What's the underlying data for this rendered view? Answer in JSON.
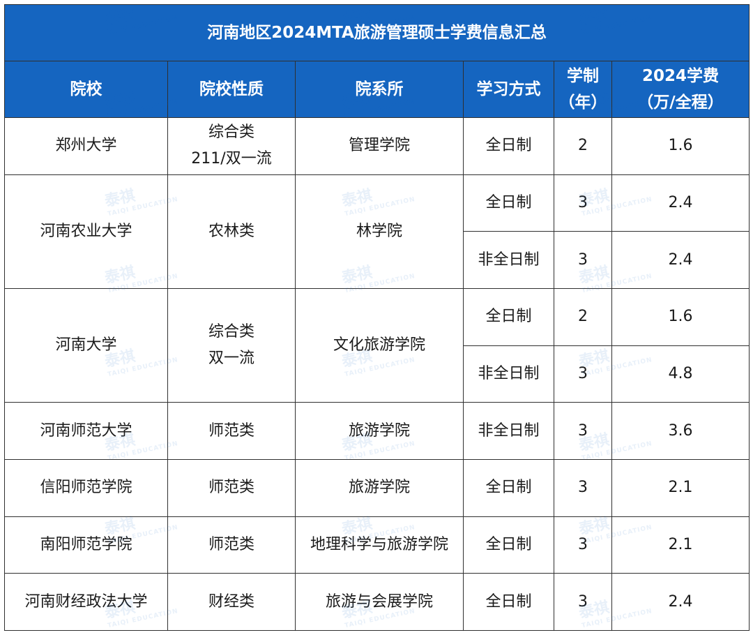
{
  "title": "河南地区2024MTA旅游管理硕士学费信息汇总",
  "headers": {
    "school": "院校",
    "nature": "院校性质",
    "dept": "院系所",
    "mode": "学习方式",
    "years_l1": "学制",
    "years_l2": "（年）",
    "fee_l1": "2024学费",
    "fee_l2": "（万/全程）"
  },
  "rows": [
    {
      "school": "郑州大学",
      "nature_l1": "综合类",
      "nature_l2": "211/双一流",
      "dept": "管理学院",
      "programs": [
        {
          "mode": "全日制",
          "years": "2",
          "fee": "1.6"
        }
      ]
    },
    {
      "school": "河南农业大学",
      "nature_l1": "农林类",
      "nature_l2": "",
      "dept": "林学院",
      "programs": [
        {
          "mode": "全日制",
          "years": "3",
          "fee": "2.4"
        },
        {
          "mode": "非全日制",
          "years": "3",
          "fee": "2.4"
        }
      ]
    },
    {
      "school": "河南大学",
      "nature_l1": "综合类",
      "nature_l2": "双一流",
      "dept": "文化旅游学院",
      "programs": [
        {
          "mode": "全日制",
          "years": "2",
          "fee": "1.6"
        },
        {
          "mode": "非全日制",
          "years": "3",
          "fee": "4.8"
        }
      ]
    },
    {
      "school": "河南师范大学",
      "nature_l1": "师范类",
      "nature_l2": "",
      "dept": "旅游学院",
      "programs": [
        {
          "mode": "非全日制",
          "years": "3",
          "fee": "3.6"
        }
      ]
    },
    {
      "school": "信阳师范学院",
      "nature_l1": "师范类",
      "nature_l2": "",
      "dept": "旅游学院",
      "programs": [
        {
          "mode": "全日制",
          "years": "3",
          "fee": "2.1"
        }
      ]
    },
    {
      "school": "南阳师范学院",
      "nature_l1": "师范类",
      "nature_l2": "",
      "dept": "地理科学与旅游学院",
      "programs": [
        {
          "mode": "全日制",
          "years": "3",
          "fee": "2.1"
        }
      ]
    },
    {
      "school": "河南财经政法大学",
      "nature_l1": "财经类",
      "nature_l2": "",
      "dept": "旅游与会展学院",
      "programs": [
        {
          "mode": "全日制",
          "years": "3",
          "fee": "2.4"
        }
      ]
    }
  ],
  "watermark": {
    "brand": "泰祺",
    "sub": "TAIQI EDUCATION"
  },
  "colors": {
    "header_bg": "#1565c0",
    "header_text": "#ffffff",
    "border": "#2f2f2f"
  }
}
